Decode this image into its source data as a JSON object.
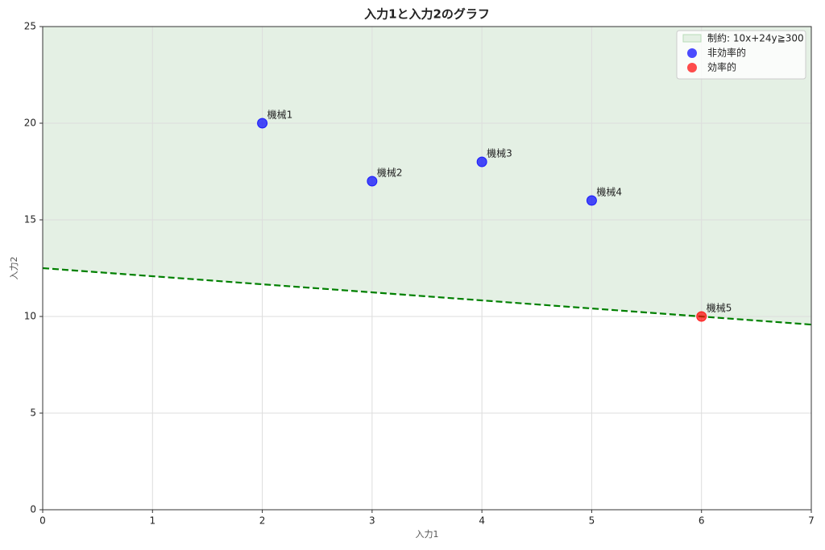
{
  "chart_data": {
    "type": "scatter",
    "title": "入力1と入力2のグラフ",
    "x_label": "入力1",
    "y_label": "入力2",
    "xlim": [
      0,
      7
    ],
    "ylim": [
      0,
      25
    ],
    "xticks": [
      0,
      1,
      2,
      3,
      4,
      5,
      6,
      7
    ],
    "yticks": [
      0,
      5,
      10,
      15,
      20,
      25
    ],
    "grid": true,
    "legend": "upper right",
    "constraint": {
      "name": "制約: 10x+24y≧300",
      "fill_color": "#e4f0e4",
      "line_color": "#008000",
      "x": [
        0,
        7
      ],
      "values": [
        12.5,
        9.58
      ]
    },
    "series": [
      {
        "name": "非効率的",
        "color": "#0000ff",
        "x": [
          2,
          3,
          4,
          5
        ],
        "values": [
          20,
          17,
          18,
          16
        ],
        "labels": [
          "機械1",
          "機械2",
          "機械3",
          "機械4"
        ]
      },
      {
        "name": "効率的",
        "color": "#ff0000",
        "x": [
          6
        ],
        "values": [
          10
        ],
        "labels": [
          "機械5"
        ]
      }
    ]
  }
}
